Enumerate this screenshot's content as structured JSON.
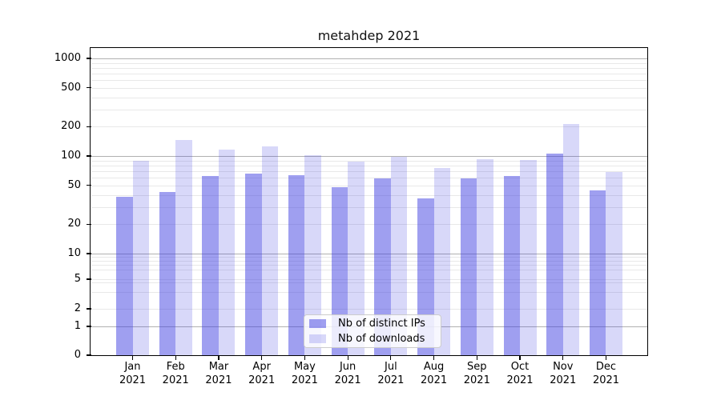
{
  "title": "metahdep 2021",
  "legend": {
    "items": [
      {
        "label": "Nb of distinct IPs",
        "color_key": "bar_distinct_ips"
      },
      {
        "label": "Nb of downloads",
        "color_key": "bar_downloads"
      }
    ]
  },
  "colors": {
    "bar_distinct_ips": "rgba(60,60,225,0.49)",
    "bar_downloads": "rgba(60,60,225,0.20)",
    "bar_distinct_ips_hex": "#9f9ff0",
    "bar_downloads_hex": "#d8d8f9",
    "grid_major": "#b0b0b0",
    "grid_minor": "#e8e8e8",
    "axis": "#000000",
    "legend_border": "#cccccc"
  },
  "chart_data": {
    "type": "bar",
    "title": "metahdep 2021",
    "categories": [
      "Jan 2021",
      "Feb 2021",
      "Mar 2021",
      "Apr 2021",
      "May 2021",
      "Jun 2021",
      "Jul 2021",
      "Aug 2021",
      "Sep 2021",
      "Oct 2021",
      "Nov 2021",
      "Dec 2021"
    ],
    "series": [
      {
        "name": "Nb of distinct IPs",
        "values": [
          38,
          43,
          62,
          66,
          64,
          48,
          59,
          37,
          59,
          62,
          105,
          44
        ]
      },
      {
        "name": "Nb of downloads",
        "values": [
          90,
          145,
          117,
          126,
          101,
          88,
          98,
          75,
          93,
          91,
          213,
          69
        ]
      }
    ],
    "xlabel": "",
    "ylabel": "",
    "yscale": "symlog",
    "yticks": [
      0,
      1,
      2,
      5,
      10,
      20,
      50,
      100,
      200,
      500,
      1000
    ],
    "ylim": [
      0,
      1300
    ],
    "grid": true,
    "legend_position": "lower center"
  }
}
